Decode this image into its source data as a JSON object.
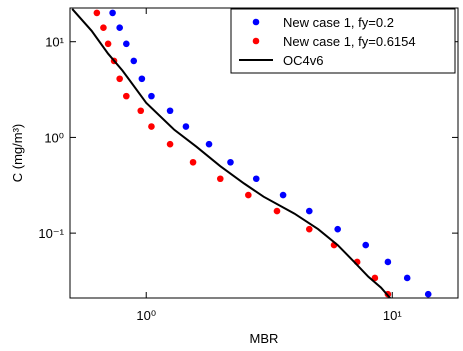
{
  "chart_data": {
    "type": "scatter",
    "xlabel": "MBR",
    "ylabel": "C (mg/m³)",
    "xscale": "log",
    "yscale": "log",
    "xlim": [
      0.49,
      18.5
    ],
    "ylim": [
      0.021,
      22.5
    ],
    "xticks": [
      {
        "value": 1,
        "label": "10⁰"
      },
      {
        "value": 10,
        "label": "10¹"
      }
    ],
    "yticks": [
      {
        "value": 0.1,
        "label": "10⁻¹"
      },
      {
        "value": 1,
        "label": "10⁰"
      },
      {
        "value": 10,
        "label": "10¹"
      }
    ],
    "legend": "upper right",
    "series": [
      {
        "name": "New case 1, fy=0.2",
        "color": "#0000ff",
        "kind": "scatter",
        "x": [
          0.73,
          0.78,
          0.83,
          0.89,
          0.96,
          1.05,
          1.25,
          1.45,
          1.8,
          2.2,
          2.8,
          3.6,
          4.6,
          6,
          7.8,
          9.6,
          11.5,
          14
        ],
        "values": [
          20,
          14,
          9.5,
          6.3,
          4.1,
          2.7,
          1.9,
          1.3,
          0.85,
          0.55,
          0.37,
          0.25,
          0.17,
          0.11,
          0.075,
          0.05,
          0.034,
          0.023
        ]
      },
      {
        "name": "New case 1, fy=0.6154",
        "color": "#ff0000",
        "kind": "scatter",
        "x": [
          0.63,
          0.67,
          0.7,
          0.74,
          0.78,
          0.83,
          0.95,
          1.05,
          1.25,
          1.55,
          2.0,
          2.6,
          3.4,
          4.6,
          5.8,
          7.2,
          8.5,
          9.6
        ],
        "values": [
          20,
          14,
          9.5,
          6.3,
          4.1,
          2.7,
          1.9,
          1.3,
          0.85,
          0.55,
          0.37,
          0.25,
          0.17,
          0.11,
          0.075,
          0.05,
          0.034,
          0.023
        ]
      },
      {
        "name": "OC4v6",
        "color": "#000000",
        "kind": "line",
        "x": [
          0.5,
          0.6,
          0.7,
          0.8,
          1,
          1.3,
          1.6,
          2,
          2.5,
          3,
          4,
          5,
          6,
          7,
          8,
          9,
          9.8
        ],
        "values": [
          22,
          13,
          7.5,
          5,
          2.3,
          1.2,
          0.8,
          0.5,
          0.33,
          0.24,
          0.16,
          0.11,
          0.075,
          0.05,
          0.035,
          0.027,
          0.021
        ]
      }
    ]
  }
}
